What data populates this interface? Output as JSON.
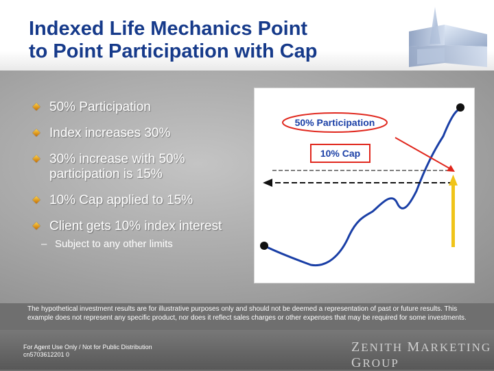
{
  "slide": {
    "title_line1": "Indexed Life Mechanics Point",
    "title_line2": "to Point Participation with Cap",
    "bullets": [
      "50% Participation",
      "Index increases 30%",
      "30% increase with 50% participation is 15%",
      "10% Cap applied to 15%",
      "Client gets 10% index interest"
    ],
    "sub_bullet": "Subject to any other limits",
    "chart": {
      "participation_label": "50% Participation",
      "cap_label": "10% Cap"
    },
    "disclaimer": "The hypothetical investment results are for illustrative purposes only and should not be deemed a representation of past or future results. This example does not represent any specific product, nor does it reflect sales charges or other expenses that may be required for some investments.",
    "footer_line1": "For Agent Use Only / Not for Public Distribution",
    "footer_line2": "cn5703612201 0",
    "brand": {
      "word1_initial": "Z",
      "word1_rest": "ENITH",
      "word2_initial": "M",
      "word2_rest": "ARKETING",
      "word3_initial": "G",
      "word3_rest": "ROUP"
    }
  },
  "colors": {
    "title": "#163a8a",
    "background": "#6f6f6f",
    "curve": "#1a3fa6",
    "arrow_red": "#e0261c",
    "arrow_yellow": "#f0c419"
  },
  "icons": [
    "diamond-bullet-icon",
    "zenith-logo-icon",
    "arrow-icon"
  ]
}
